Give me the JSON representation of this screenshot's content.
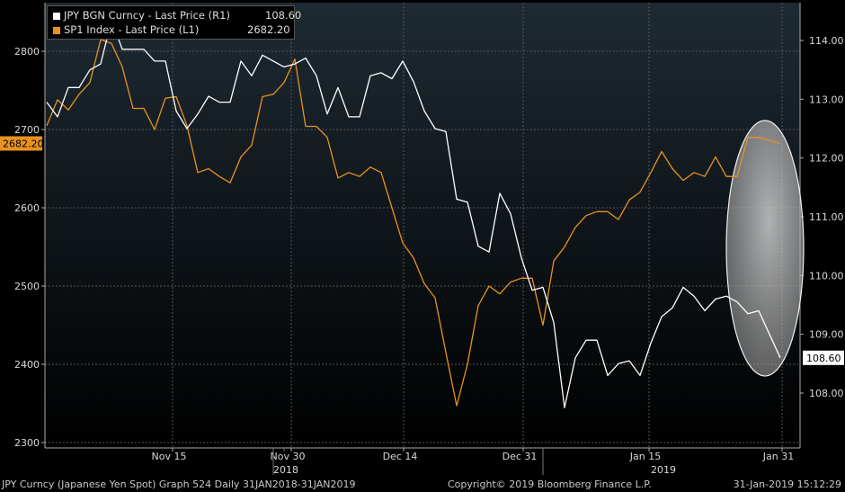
{
  "chart_data": {
    "type": "line",
    "x_ticks": [
      "Nov 15",
      "Nov 30",
      "Dec 14",
      "Dec 31",
      "Jan 15",
      "Jan 31"
    ],
    "x_year_labels": [
      "2018",
      "2019"
    ],
    "left_axis": {
      "ticks": [
        "2800",
        "2700",
        "2600",
        "2500",
        "2400",
        "2300"
      ],
      "ylim": [
        2295,
        2855
      ]
    },
    "right_axis": {
      "ticks": [
        "114.00",
        "113.00",
        "112.00",
        "111.00",
        "110.00",
        "109.00",
        "108.00"
      ],
      "ylim": [
        107.15,
        114.9
      ]
    },
    "series": [
      {
        "name": "JPY BGN Curncy - Last Price (R1)",
        "last_value": "108.60",
        "color": "#ffffff",
        "axis": "right",
        "values": [
          112.95,
          112.7,
          113.2,
          113.2,
          113.5,
          113.6,
          114.35,
          113.85,
          113.85,
          113.85,
          113.65,
          113.65,
          112.8,
          112.5,
          112.75,
          113.05,
          112.95,
          112.95,
          113.65,
          113.4,
          113.75,
          113.65,
          113.55,
          113.6,
          113.7,
          113.4,
          112.75,
          113.2,
          112.7,
          112.7,
          113.4,
          113.45,
          113.35,
          113.65,
          113.3,
          112.8,
          112.5,
          112.45,
          111.3,
          111.25,
          110.5,
          110.4,
          111.4,
          111.05,
          110.3,
          109.75,
          109.8,
          109.2,
          107.75,
          108.6,
          108.9,
          108.9,
          108.3,
          108.5,
          108.55,
          108.3,
          108.85,
          109.3,
          109.45,
          109.8,
          109.65,
          109.4,
          109.6,
          109.65,
          109.55,
          109.35,
          109.4,
          109.0,
          108.6
        ],
        "x_index": [
          0,
          1,
          2,
          3,
          4,
          5,
          6,
          7,
          8,
          9,
          10,
          11,
          12,
          13,
          14,
          15,
          16,
          17,
          18,
          19,
          20,
          21,
          22,
          23,
          24,
          25,
          26,
          27,
          28,
          29,
          30,
          31,
          32,
          33,
          34,
          35,
          36,
          37,
          38,
          39,
          40,
          41,
          42,
          43,
          44,
          45,
          46,
          47,
          48,
          49,
          50,
          51,
          52,
          53,
          54,
          55,
          56,
          57,
          58,
          59,
          60,
          61,
          62,
          63,
          64,
          65,
          66,
          67,
          68
        ]
      },
      {
        "name": "SP1 Index - Last Price (L1)",
        "last_value": "2682.20",
        "color": "#e8921f",
        "axis": "left",
        "values": [
          2705,
          2738,
          2725,
          2745,
          2760,
          2815,
          2810,
          2780,
          2727,
          2727,
          2700,
          2740,
          2742,
          2705,
          2645,
          2650,
          2640,
          2632,
          2665,
          2680,
          2742,
          2745,
          2760,
          2790,
          2704,
          2704,
          2690,
          2638,
          2645,
          2640,
          2652,
          2645,
          2600,
          2555,
          2536,
          2503,
          2485,
          2415,
          2347,
          2400,
          2475,
          2500,
          2490,
          2505,
          2510,
          2510,
          2450,
          2532,
          2550,
          2575,
          2590,
          2595,
          2595,
          2585,
          2610,
          2620,
          2645,
          2672,
          2650,
          2635,
          2645,
          2640,
          2665,
          2640,
          2640,
          2690,
          2690,
          2682.2
        ],
        "x_index": [
          0,
          1,
          2,
          3,
          4,
          5,
          6,
          7,
          8,
          9,
          10,
          11,
          12,
          13,
          14,
          15,
          16,
          17,
          18,
          19,
          20,
          21,
          22,
          23,
          24,
          25,
          26,
          27,
          28,
          29,
          30,
          31,
          32,
          33,
          34,
          35,
          36,
          37,
          38,
          39,
          40,
          41,
          42,
          43,
          44,
          45,
          46,
          47,
          48,
          49,
          50,
          51,
          52,
          53,
          54,
          55,
          56,
          57,
          58,
          59,
          60,
          61,
          62,
          63,
          64,
          65,
          66,
          68
        ]
      }
    ],
    "grid": true,
    "highlight": "ellipse around last values",
    "colors": {
      "background": "#000000",
      "gradient": "#1e2a33",
      "grid": "#555555",
      "ellipse": "#c8c8c8"
    }
  },
  "footer": {
    "left": "JPY Curncy (Japanese Yen Spot) Graph 524  Daily 31JAN2018-31JAN2019",
    "center": "Copyright© 2019 Bloomberg Finance L.P.",
    "right": "31-Jan-2019 15:12:29"
  }
}
